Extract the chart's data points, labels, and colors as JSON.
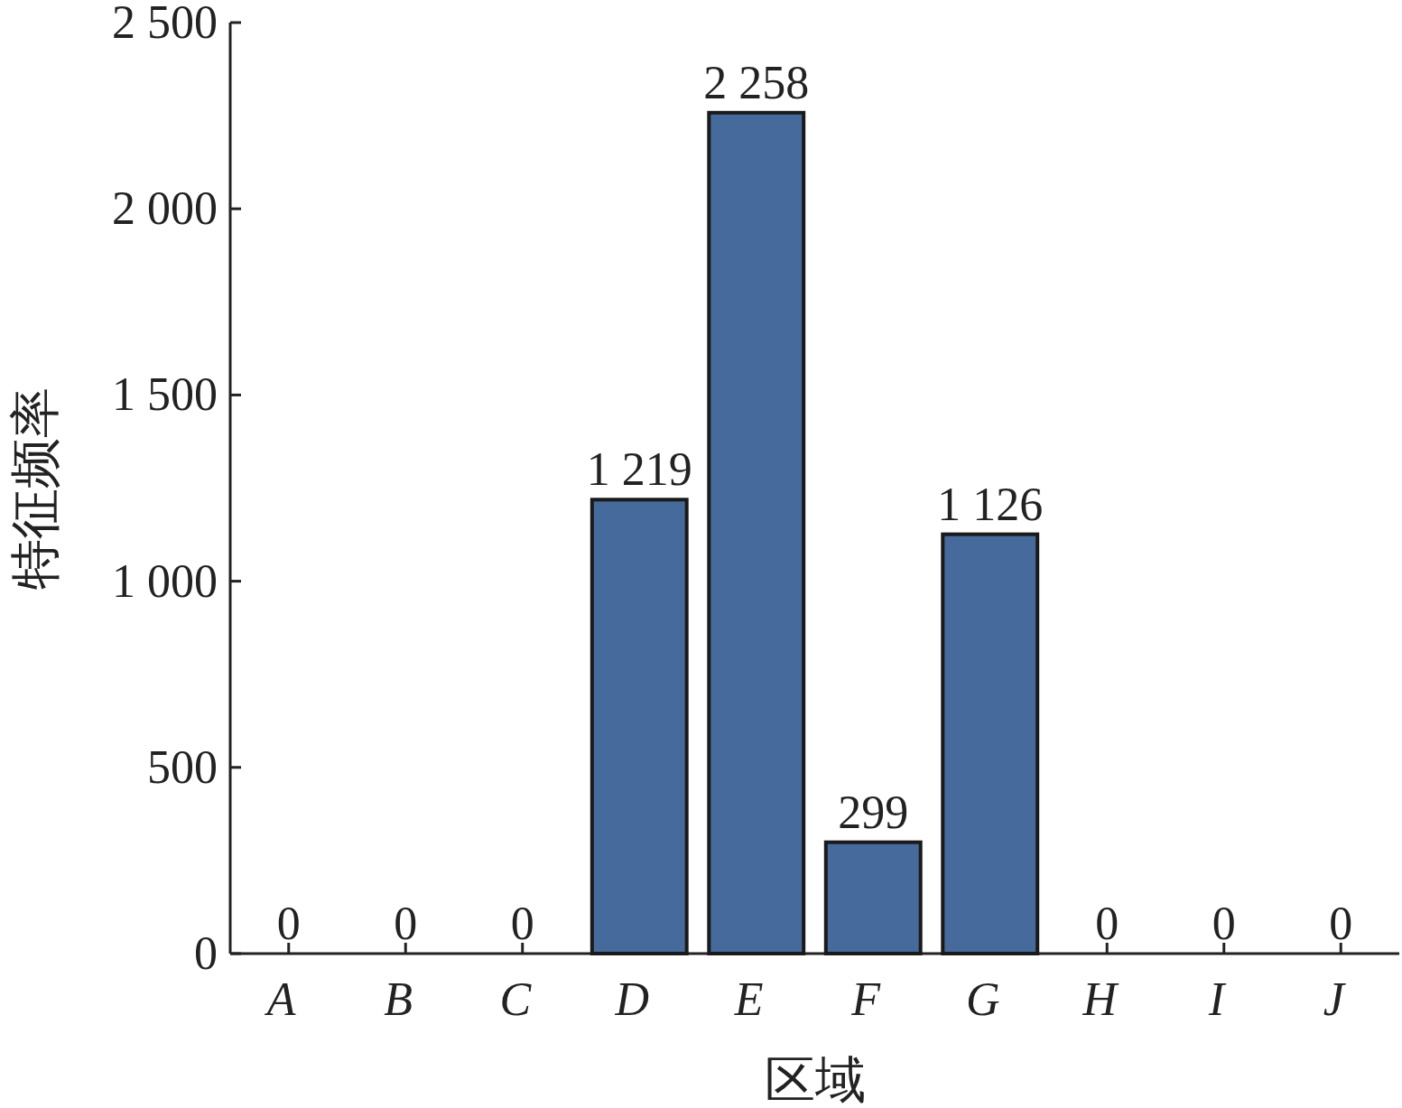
{
  "chart_data": {
    "type": "bar",
    "xlabel": "区域",
    "ylabel": "特征频率",
    "categories": [
      "A",
      "B",
      "C",
      "D",
      "E",
      "F",
      "G",
      "H",
      "I",
      "J"
    ],
    "values": [
      0,
      0,
      0,
      1219,
      2258,
      299,
      1126,
      0,
      0,
      0
    ],
    "value_labels": [
      "0",
      "0",
      "0",
      "1 219",
      "2 258",
      "299",
      "1 126",
      "0",
      "0",
      "0"
    ],
    "color": "#466a9b",
    "ylim": [
      0,
      2500
    ],
    "yticks": [
      0,
      500,
      {
        "value": 1000,
        "label": "1 000"
      },
      {
        "value": 1500,
        "label": "1 500"
      },
      {
        "value": 2000,
        "label": "2 000"
      },
      {
        "value": 2500,
        "label": "2 500"
      }
    ]
  }
}
